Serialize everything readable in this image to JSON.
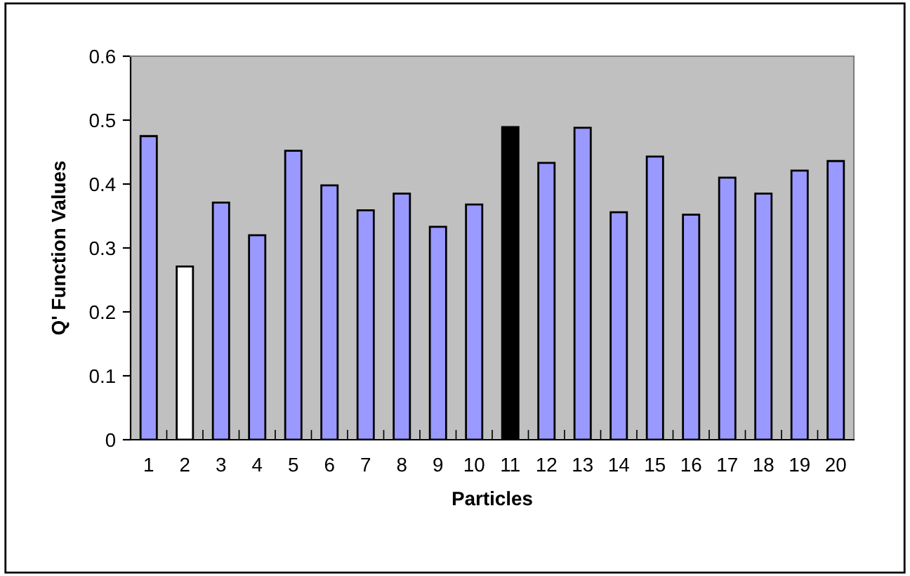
{
  "chart_data": {
    "type": "bar",
    "xlabel": "Particles",
    "ylabel": "Q' Function Values",
    "categories": [
      "1",
      "2",
      "3",
      "4",
      "5",
      "6",
      "7",
      "8",
      "9",
      "10",
      "11",
      "12",
      "13",
      "14",
      "15",
      "16",
      "17",
      "18",
      "19",
      "20"
    ],
    "values": [
      0.475,
      0.271,
      0.371,
      0.32,
      0.452,
      0.398,
      0.359,
      0.385,
      0.333,
      0.368,
      0.489,
      0.433,
      0.488,
      0.356,
      0.443,
      0.352,
      0.41,
      0.385,
      0.421,
      0.436
    ],
    "colors": [
      "#9999ff",
      "#ffffff",
      "#9999ff",
      "#9999ff",
      "#9999ff",
      "#9999ff",
      "#9999ff",
      "#9999ff",
      "#9999ff",
      "#9999ff",
      "#000000",
      "#9999ff",
      "#9999ff",
      "#9999ff",
      "#9999ff",
      "#9999ff",
      "#9999ff",
      "#9999ff",
      "#9999ff",
      "#9999ff"
    ],
    "ylim": [
      0,
      0.6
    ],
    "yticks": [
      0,
      0.1,
      0.2,
      0.3,
      0.4,
      0.5,
      0.6
    ],
    "grid": false,
    "legend": false
  }
}
